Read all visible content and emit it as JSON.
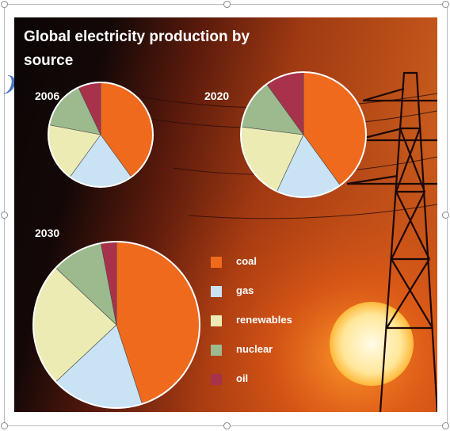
{
  "chart_data": {
    "type": "pie",
    "title": "Global electricity production by source",
    "legend_position": "right",
    "categories": [
      "coal",
      "gas",
      "renewables",
      "nuclear",
      "oil"
    ],
    "colors": [
      "#f06a1e",
      "#c9e2f4",
      "#ecebb4",
      "#9cba8e",
      "#a8324b"
    ],
    "pies": [
      {
        "label": "2006",
        "values": [
          40.0,
          20.0,
          18.0,
          15.0,
          7.0
        ]
      },
      {
        "label": "2020",
        "values": [
          40.0,
          17.0,
          20.0,
          13.0,
          10.0
        ]
      },
      {
        "label": "2030",
        "values": [
          45.0,
          18.0,
          24.0,
          10.0,
          3.0
        ]
      }
    ]
  },
  "legend": {
    "items": [
      {
        "label": "coal",
        "color": "#f06a1e"
      },
      {
        "label": "gas",
        "color": "#c9e2f4"
      },
      {
        "label": "renewables",
        "color": "#ecebb4"
      },
      {
        "label": "nuclear",
        "color": "#9cba8e"
      },
      {
        "label": "oil",
        "color": "#a8324b"
      }
    ]
  }
}
